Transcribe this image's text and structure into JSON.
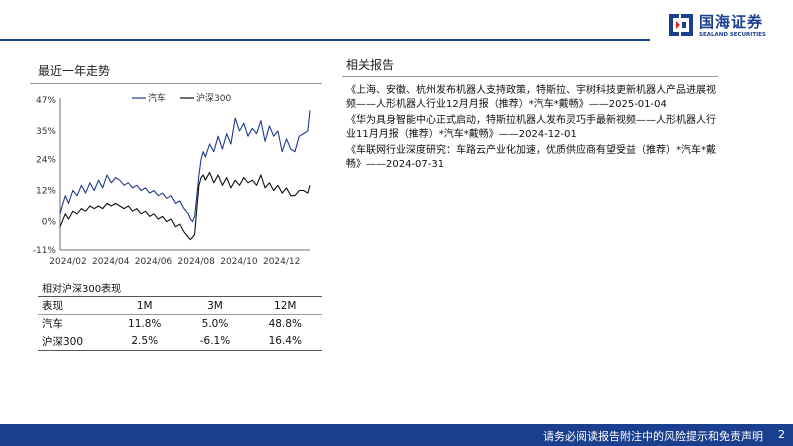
{
  "brand": {
    "name_cn": "国海证券",
    "name_en": "SEALAND SECURITIES",
    "color": "#1b3f8f"
  },
  "left": {
    "title": "最近一年走势",
    "perf_title": "相对沪深300表现",
    "perf_table": {
      "headers": [
        "表现",
        "1M",
        "3M",
        "12M"
      ],
      "rows": [
        [
          "汽车",
          "11.8%",
          "5.0%",
          "48.8%"
        ],
        [
          "沪深300",
          "2.5%",
          "-6.1%",
          "16.4%"
        ]
      ]
    }
  },
  "right": {
    "title": "相关报告",
    "reports": [
      "《上海、安徽、杭州发布机器人支持政策，特斯拉、宇树科技更新机器人产品进展视频——人形机器人行业12月月报（推荐）*汽车*戴畅》——2025-01-04",
      "《华为具身智能中心正式启动，特斯拉机器人发布灵巧手最新视频——人形机器人行业11月月报（推荐）*汽车*戴畅》——2024-12-01",
      "《车联网行业深度研究：车路云产业化加速，优质供应商有望受益（推荐）*汽车*戴畅》——2024-07-31"
    ]
  },
  "chart_data": {
    "type": "line",
    "y_ticks": [
      "47%",
      "35%",
      "24%",
      "12%",
      "0%",
      "-11%"
    ],
    "y_tick_values": [
      47,
      35,
      24,
      12,
      0,
      -11
    ],
    "ylim": [
      -11,
      47
    ],
    "x_ticks": [
      "2024/02",
      "2024/04",
      "2024/06",
      "2024/08",
      "2024/10",
      "2024/12"
    ],
    "x_tick_months": [
      0,
      2,
      4,
      6,
      8,
      10
    ],
    "x_range_months": [
      0,
      11.7
    ],
    "series": [
      {
        "name": "汽车",
        "color": "#1f3a8f",
        "x_months": [
          0,
          0.1,
          0.25,
          0.4,
          0.6,
          0.8,
          1.0,
          1.2,
          1.4,
          1.6,
          1.8,
          2.0,
          2.2,
          2.4,
          2.6,
          2.8,
          3.0,
          3.2,
          3.4,
          3.6,
          3.8,
          4.0,
          4.2,
          4.4,
          4.6,
          4.8,
          5.0,
          5.2,
          5.4,
          5.6,
          5.8,
          6.0,
          6.1,
          6.2,
          6.3,
          6.4,
          6.5,
          6.6,
          6.7,
          6.8,
          7.0,
          7.2,
          7.4,
          7.6,
          7.8,
          8.0,
          8.2,
          8.4,
          8.6,
          8.8,
          9.0,
          9.2,
          9.4,
          9.6,
          9.8,
          10.0,
          10.2,
          10.4,
          10.6,
          10.8,
          11.0,
          11.2,
          11.4,
          11.6,
          11.7
        ],
        "values": [
          3,
          6,
          10,
          7,
          12,
          10,
          14,
          11,
          15,
          12,
          16,
          13,
          18,
          15,
          17,
          16,
          14,
          15,
          13,
          14,
          12,
          13,
          11,
          12,
          10,
          11,
          9,
          10,
          7,
          8,
          5,
          3,
          1,
          0,
          2,
          10,
          18,
          24,
          27,
          25,
          30,
          27,
          33,
          28,
          34,
          30,
          40,
          35,
          38,
          33,
          36,
          34,
          39,
          31,
          37,
          33,
          35,
          27,
          32,
          28,
          27,
          33,
          34,
          35,
          43
        ]
      },
      {
        "name": "沪深300",
        "color": "#111111",
        "x_months": [
          0,
          0.1,
          0.25,
          0.4,
          0.6,
          0.8,
          1.0,
          1.2,
          1.4,
          1.6,
          1.8,
          2.0,
          2.2,
          2.4,
          2.6,
          2.8,
          3.0,
          3.2,
          3.4,
          3.6,
          3.8,
          4.0,
          4.2,
          4.4,
          4.6,
          4.8,
          5.0,
          5.2,
          5.4,
          5.6,
          5.8,
          6.0,
          6.1,
          6.2,
          6.3,
          6.4,
          6.5,
          6.6,
          6.7,
          6.8,
          7.0,
          7.2,
          7.4,
          7.6,
          7.8,
          8.0,
          8.2,
          8.4,
          8.6,
          8.8,
          9.0,
          9.2,
          9.4,
          9.6,
          9.8,
          10.0,
          10.2,
          10.4,
          10.6,
          10.8,
          11.0,
          11.2,
          11.4,
          11.6,
          11.7
        ],
        "values": [
          -2,
          0,
          3,
          1,
          4,
          3,
          5,
          4,
          6,
          5,
          6,
          5,
          7,
          6,
          7,
          6,
          5,
          6,
          4,
          5,
          3,
          4,
          2,
          3,
          1,
          2,
          0,
          1,
          -2,
          -1,
          -4,
          -6,
          -7,
          -6,
          -5,
          5,
          14,
          17,
          18,
          16,
          19,
          15,
          18,
          14,
          17,
          13,
          16,
          14,
          17,
          15,
          16,
          14,
          18,
          13,
          15,
          12,
          14,
          11,
          13,
          10,
          10,
          12,
          12,
          11,
          14
        ]
      }
    ],
    "grid": false,
    "legend": "top"
  },
  "footer": {
    "disclaimer": "请务必阅读报告附注中的风险提示和免责声明",
    "page": "2"
  }
}
